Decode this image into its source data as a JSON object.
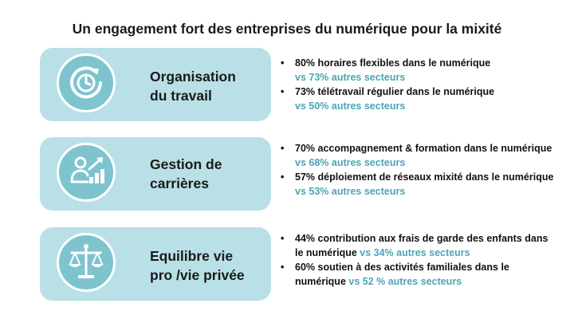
{
  "title": "Un engagement fort des entreprises du numérique pour la mixité",
  "colors": {
    "pill": "#b9e0e6",
    "circle": "#7ec4cf",
    "accent": "#4aa5b5"
  },
  "sections": [
    {
      "icon": "clock-refresh-icon",
      "label_line1": "Organisation",
      "label_line2": "du travail",
      "bullets": [
        {
          "line1": "80% horaires flexibles dans le numérique",
          "vs": "vs 73% autres secteurs"
        },
        {
          "line1": "73% télétravail régulier dans le numérique",
          "vs": "vs 50% autres secteurs"
        }
      ]
    },
    {
      "icon": "career-growth-icon",
      "label_line1": "Gestion de",
      "label_line2": "carrières",
      "bullets": [
        {
          "line1": "70% accompagnement & formation dans le numérique",
          "vs": "vs 68% autres secteurs"
        },
        {
          "line1": "57% déploiement de réseaux mixité dans le numérique",
          "vs": "vs 53% autres secteurs"
        }
      ]
    },
    {
      "icon": "balance-scale-icon",
      "label_line1": "Equilibre vie",
      "label_line2": "pro /vie privée",
      "bullets": [
        {
          "line1": "44% contribution aux frais de garde des enfants dans",
          "line2": "le numérique ",
          "vs": "vs 34% autres secteurs"
        },
        {
          "line1": "60% soutien à des activités familiales dans le",
          "line2": "numérique ",
          "vs": "vs 52 % autres secteurs"
        }
      ]
    }
  ]
}
